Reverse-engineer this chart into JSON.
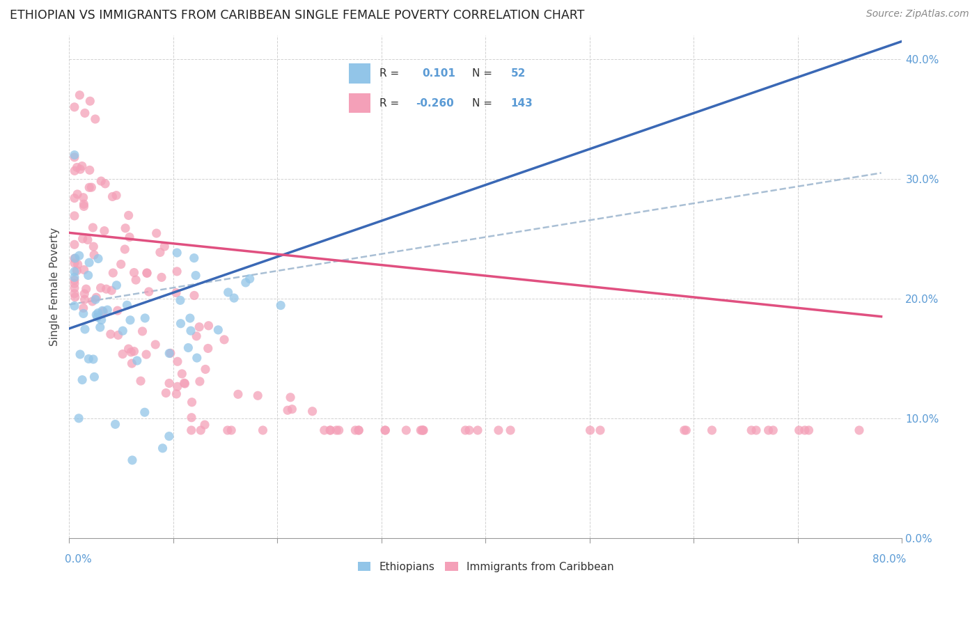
{
  "title": "ETHIOPIAN VS IMMIGRANTS FROM CARIBBEAN SINGLE FEMALE POVERTY CORRELATION CHART",
  "source": "Source: ZipAtlas.com",
  "ylabel": "Single Female Poverty",
  "color_ethiopian": "#92c5e8",
  "color_caribbean": "#f4a0b8",
  "color_line_eth": "#3a68b5",
  "color_line_car": "#e05080",
  "color_dashed": "#a0b8d0",
  "xlim": [
    0.0,
    0.8
  ],
  "ylim": [
    0.0,
    0.42
  ],
  "eth_line_x0": 0.0,
  "eth_line_y0": 0.175,
  "eth_line_x1": 0.2,
  "eth_line_y1": 0.235,
  "car_line_x0": 0.0,
  "car_line_y0": 0.255,
  "car_line_x1": 0.78,
  "car_line_y1": 0.185,
  "dash_line_x0": 0.0,
  "dash_line_y0": 0.195,
  "dash_line_x1": 0.78,
  "dash_line_y1": 0.305
}
